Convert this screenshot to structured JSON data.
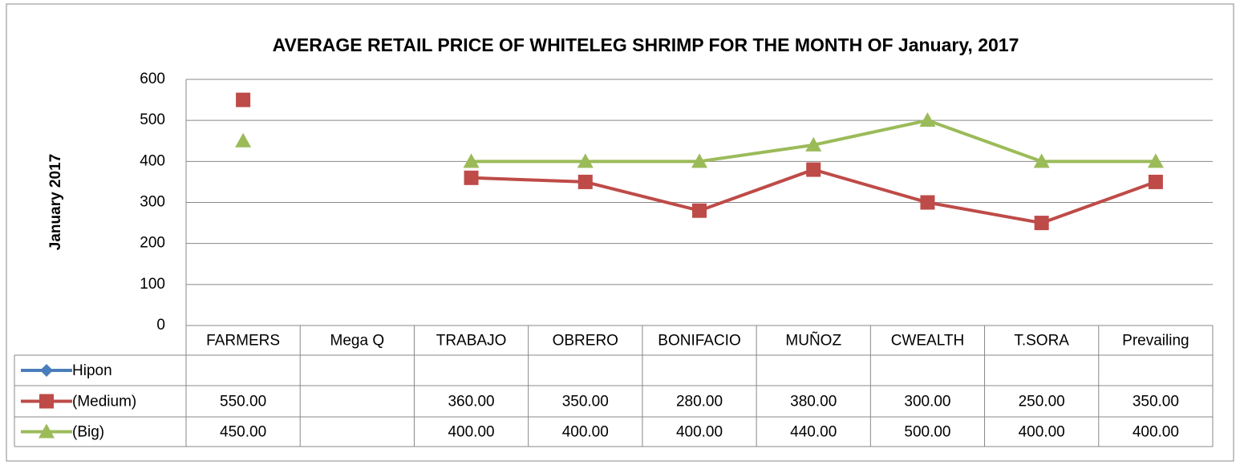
{
  "chart_data": {
    "type": "line",
    "title": "AVERAGE RETAIL PRICE OF WHITELEG SHRIMP FOR THE MONTH OF January, 2017",
    "y_label": "January 2017",
    "categories": [
      "FARMERS",
      "Mega Q",
      "TRABAJO",
      "OBRERO",
      "BONIFACIO",
      "MUÑOZ",
      "CWEALTH",
      "T.SORA",
      "Prevailing"
    ],
    "series": [
      {
        "name": "Hipon",
        "color": "#4a7ebb",
        "marker": "diamond",
        "values": [
          null,
          null,
          null,
          null,
          null,
          null,
          null,
          null,
          null
        ],
        "value_labels": [
          null,
          null,
          null,
          null,
          null,
          null,
          null,
          null,
          null
        ]
      },
      {
        "name": "(Medium)",
        "color": "#be4b48",
        "marker": "square",
        "values": [
          550,
          null,
          360,
          350,
          280,
          380,
          300,
          250,
          350
        ],
        "value_labels": [
          "550.00",
          null,
          "360.00",
          "350.00",
          "280.00",
          "380.00",
          "300.00",
          "250.00",
          "350.00"
        ]
      },
      {
        "name": "(Big)",
        "color": "#9bbb59",
        "marker": "triangle",
        "values": [
          450,
          null,
          400,
          400,
          400,
          440,
          500,
          400,
          400
        ],
        "value_labels": [
          "450.00",
          null,
          "400.00",
          "400.00",
          "400.00",
          "440.00",
          "500.00",
          "400.00",
          "400.00"
        ]
      }
    ],
    "ylim": [
      0,
      600
    ],
    "yticks": [
      0,
      100,
      200,
      300,
      400,
      500,
      600
    ],
    "grid": true
  }
}
